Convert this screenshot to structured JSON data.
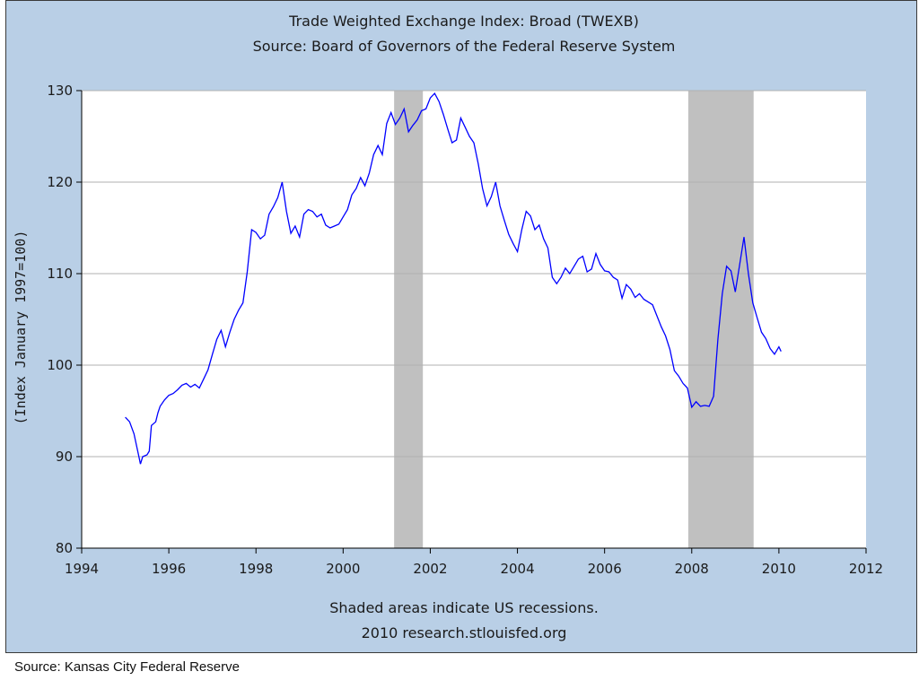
{
  "footer": {
    "source": "Source: Kansas City Federal Reserve"
  },
  "chart_data": {
    "type": "line",
    "title": "Trade Weighted Exchange Index: Broad (TWEXB)",
    "subtitle": "Source: Board of Governors of the Federal Reserve System",
    "ylabel": "(Index January 1997=100)",
    "xlabel": "",
    "notes": [
      "Shaded areas indicate US recessions.",
      "2010 research.stlouisfed.org"
    ],
    "xlim": [
      1994,
      2012
    ],
    "ylim": [
      80,
      130
    ],
    "x_ticks": [
      1994,
      1996,
      1998,
      2000,
      2002,
      2004,
      2006,
      2008,
      2010,
      2012
    ],
    "y_ticks": [
      80,
      90,
      100,
      110,
      120,
      130
    ],
    "grid": "horizontal",
    "colors": {
      "line": "#0000ff",
      "recession": "#c0c0c0",
      "panel": "#b9cfe6",
      "plot": "#ffffff"
    },
    "recessions": [
      [
        2001.17,
        2001.83
      ],
      [
        2007.92,
        2009.42
      ]
    ],
    "series": [
      {
        "x": [
          1995.0,
          1995.1,
          1995.2,
          1995.3,
          1995.35,
          1995.4,
          1995.5,
          1995.55,
          1995.6,
          1995.7,
          1995.75,
          1995.8,
          1995.9,
          1996.0,
          1996.1,
          1996.2,
          1996.3,
          1996.4,
          1996.5,
          1996.6,
          1996.7,
          1996.8,
          1996.9,
          1997.0,
          1997.1,
          1997.2,
          1997.3,
          1997.4,
          1997.5,
          1997.6,
          1997.7,
          1997.8,
          1997.9,
          1998.0,
          1998.1,
          1998.2,
          1998.3,
          1998.4,
          1998.5,
          1998.6,
          1998.7,
          1998.8,
          1998.9,
          1999.0,
          1999.1,
          1999.2,
          1999.3,
          1999.4,
          1999.5,
          1999.6,
          1999.7,
          1999.8,
          1999.9,
          2000.0,
          2000.1,
          2000.2,
          2000.3,
          2000.4,
          2000.5,
          2000.6,
          2000.7,
          2000.8,
          2000.9,
          2001.0,
          2001.1,
          2001.2,
          2001.3,
          2001.4,
          2001.5,
          2001.6,
          2001.7,
          2001.8,
          2001.9,
          2002.0,
          2002.1,
          2002.2,
          2002.3,
          2002.4,
          2002.5,
          2002.6,
          2002.7,
          2002.8,
          2002.9,
          2003.0,
          2003.1,
          2003.2,
          2003.3,
          2003.4,
          2003.5,
          2003.6,
          2003.7,
          2003.8,
          2003.9,
          2004.0,
          2004.1,
          2004.2,
          2004.3,
          2004.4,
          2004.5,
          2004.6,
          2004.7,
          2004.8,
          2004.9,
          2005.0,
          2005.1,
          2005.2,
          2005.3,
          2005.4,
          2005.5,
          2005.6,
          2005.7,
          2005.8,
          2005.9,
          2006.0,
          2006.1,
          2006.2,
          2006.3,
          2006.4,
          2006.5,
          2006.6,
          2006.7,
          2006.8,
          2006.9,
          2007.0,
          2007.1,
          2007.2,
          2007.3,
          2007.4,
          2007.5,
          2007.6,
          2007.7,
          2007.8,
          2007.9,
          2008.0,
          2008.1,
          2008.2,
          2008.3,
          2008.4,
          2008.5,
          2008.6,
          2008.7,
          2008.8,
          2008.9,
          2009.0,
          2009.1,
          2009.2,
          2009.3,
          2009.4,
          2009.5,
          2009.6,
          2009.7,
          2009.8,
          2009.9,
          2010.0,
          2010.05
        ],
        "values": [
          94.3,
          93.8,
          92.5,
          90.3,
          89.2,
          90.0,
          90.2,
          90.6,
          93.4,
          93.8,
          94.8,
          95.5,
          96.2,
          96.7,
          96.9,
          97.3,
          97.8,
          98.0,
          97.6,
          97.9,
          97.5,
          98.5,
          99.5,
          101.2,
          102.8,
          103.8,
          102.0,
          103.6,
          105.0,
          106.0,
          106.8,
          110.2,
          114.8,
          114.5,
          113.8,
          114.2,
          116.5,
          117.3,
          118.3,
          120.0,
          116.8,
          114.4,
          115.2,
          114.0,
          116.5,
          117.0,
          116.8,
          116.2,
          116.5,
          115.3,
          115.0,
          115.2,
          115.4,
          116.2,
          117.0,
          118.6,
          119.3,
          120.5,
          119.6,
          121.0,
          123.0,
          124.0,
          123.0,
          126.4,
          127.6,
          126.3,
          127.0,
          128.0,
          125.5,
          126.2,
          126.8,
          127.8,
          128.0,
          129.2,
          129.7,
          128.8,
          127.4,
          125.8,
          124.3,
          124.6,
          127.0,
          126.0,
          125.0,
          124.3,
          122.0,
          119.3,
          117.4,
          118.4,
          120.0,
          117.4,
          115.8,
          114.3,
          113.3,
          112.4,
          114.8,
          116.8,
          116.3,
          114.8,
          115.3,
          113.8,
          112.8,
          109.6,
          108.9,
          109.6,
          110.6,
          110.0,
          110.8,
          111.6,
          111.9,
          110.2,
          110.5,
          112.2,
          111.0,
          110.3,
          110.2,
          109.6,
          109.3,
          107.3,
          108.8,
          108.3,
          107.4,
          107.8,
          107.2,
          106.9,
          106.6,
          105.4,
          104.2,
          103.2,
          101.7,
          99.4,
          98.8,
          98.0,
          97.5,
          95.4,
          96.0,
          95.5,
          95.6,
          95.5,
          96.6,
          102.8,
          107.8,
          110.8,
          110.3,
          108.0,
          111.0,
          114.0,
          110.0,
          106.8,
          105.2,
          103.6,
          102.9,
          101.8,
          101.2,
          102.0,
          101.5
        ]
      }
    ]
  }
}
